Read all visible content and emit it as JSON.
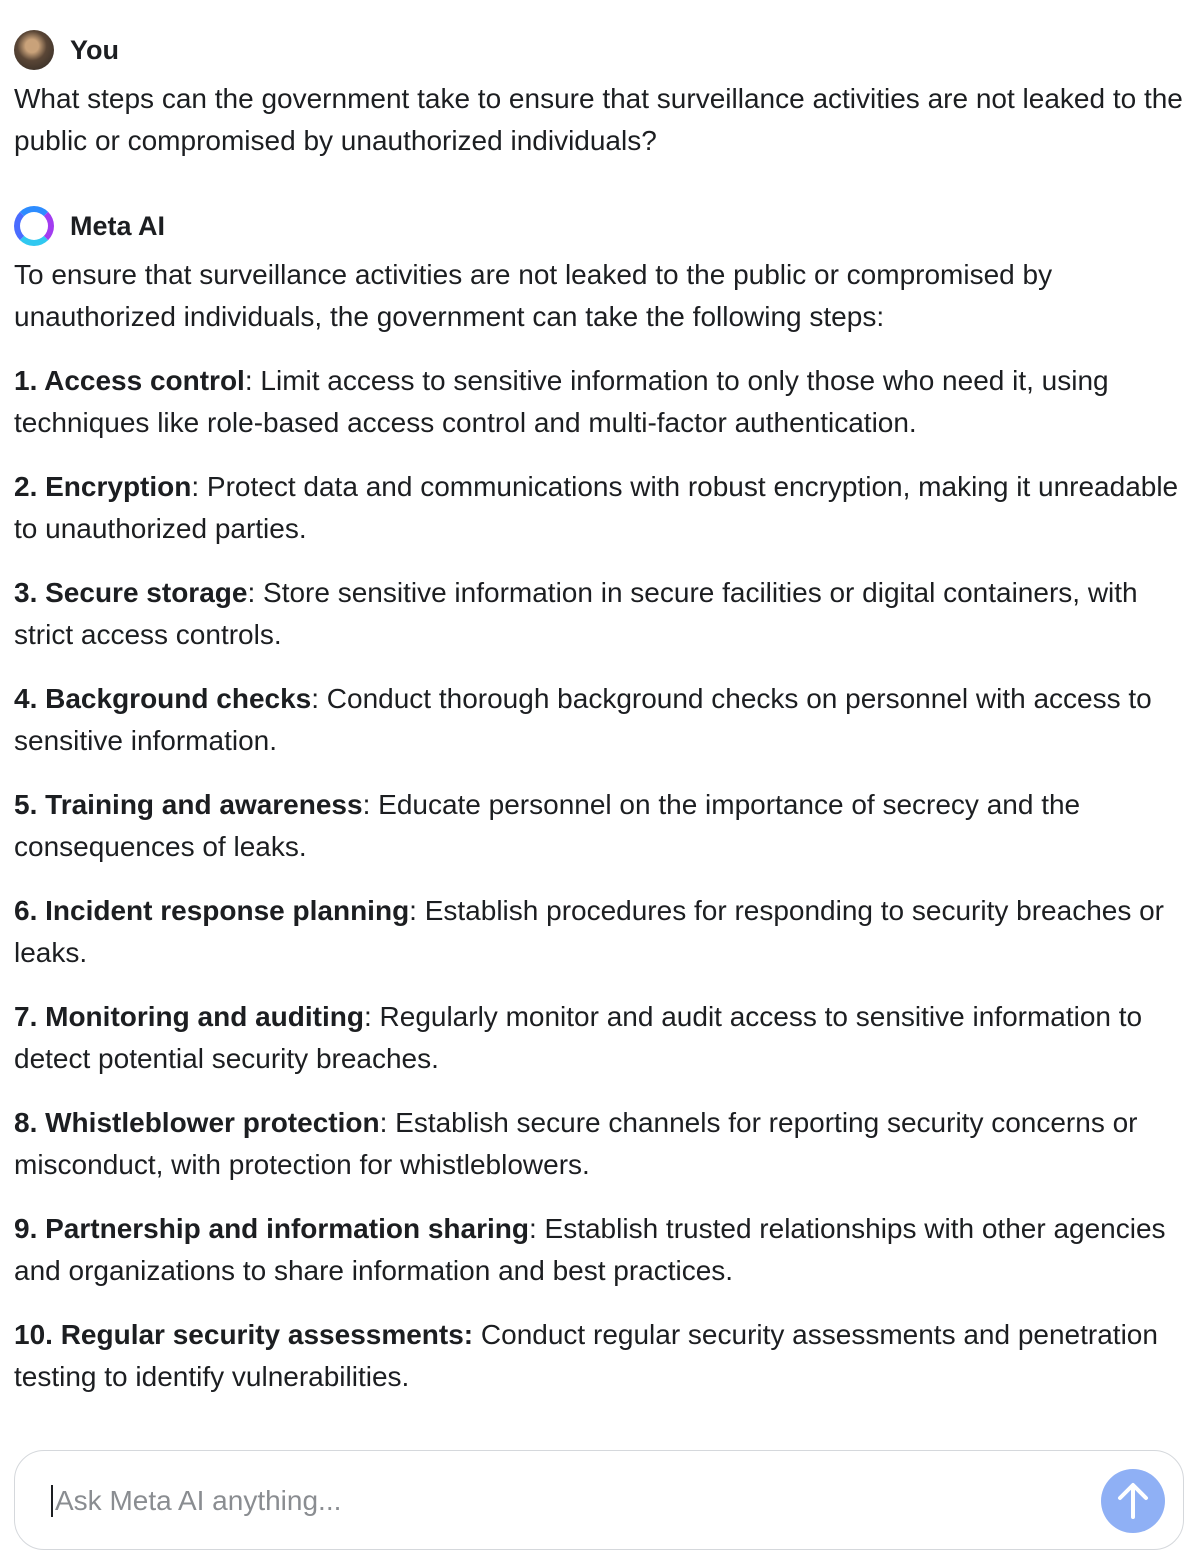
{
  "user": {
    "name": "You",
    "message": "What steps can the government take to ensure that surveillance activities are not leaked to the public or compromised by unauthorized individuals?"
  },
  "assistant": {
    "name": "Meta AI",
    "intro": "To ensure that surveillance activities are not leaked to the public or compromised by unauthorized individuals, the government can take the following steps:",
    "items": [
      {
        "bold": "1. Access control",
        "text": ": Limit access to sensitive information to only those who need it, using techniques like role-based access control and multi-factor authentication."
      },
      {
        "bold": "2. Encryption",
        "text": ": Protect data and communications with robust encryption, making it unreadable to unauthorized parties."
      },
      {
        "bold": "3. Secure storage",
        "text": ": Store sensitive information in secure facilities or digital containers, with strict access controls."
      },
      {
        "bold": "4. Background checks",
        "text": ": Conduct thorough background checks on personnel with access to sensitive information."
      },
      {
        "bold": "5. Training and awareness",
        "text": ": Educate personnel on the importance of secrecy and the consequences of leaks."
      },
      {
        "bold": "6. Incident response planning",
        "text": ": Establish procedures for responding to security breaches or leaks."
      },
      {
        "bold": "7. Monitoring and auditing",
        "text": ": Regularly monitor and audit access to sensitive information to detect potential security breaches."
      },
      {
        "bold": "8. Whistleblower protection",
        "text": ": Establish secure channels for reporting security concerns or misconduct, with protection for whistleblowers."
      },
      {
        "bold": "9. Partnership and information sharing",
        "text": ": Establish trusted relationships with other agencies and organizations to share information and best practices."
      },
      {
        "bold": "10. Regular security assessments:",
        "text": " Conduct regular security assessments and penetration testing to identify vulnerabilities."
      }
    ]
  },
  "input": {
    "placeholder": "Ask Meta AI anything..."
  }
}
